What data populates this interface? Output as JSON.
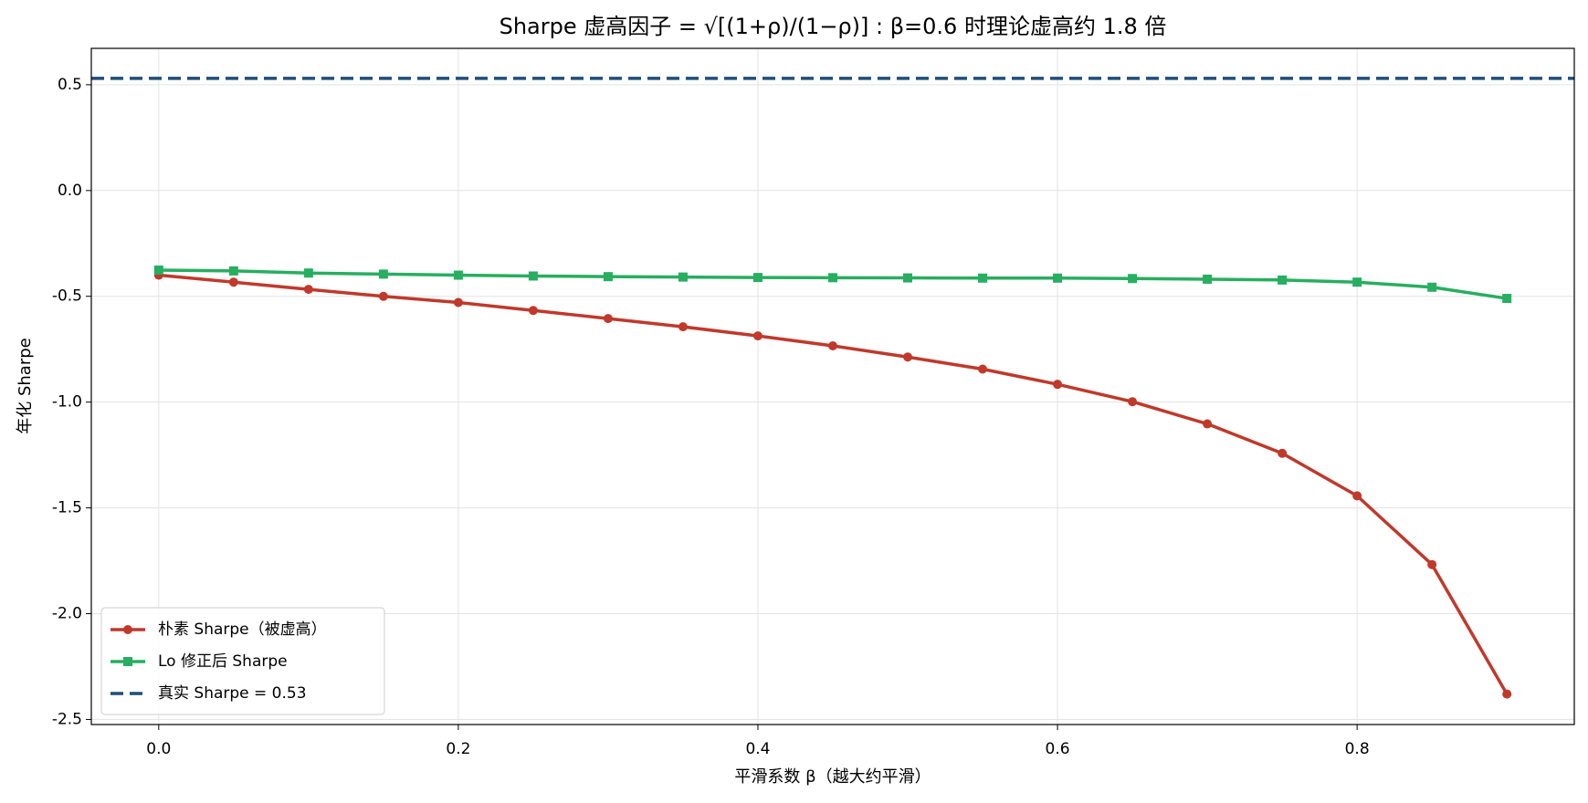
{
  "chart_data": {
    "type": "line",
    "title": "Sharpe 虚高因子 = √[(1+ρ)/(1−ρ)] : β=0.6 时理论虚高约 1.8 倍",
    "x_label": "平滑系数 β（越大约平滑）",
    "y_label": "年化 Sharpe",
    "x": [
      0,
      0.05,
      0.1,
      0.15,
      0.2,
      0.25,
      0.3,
      0.35,
      0.4,
      0.45,
      0.5,
      0.55,
      0.6,
      0.65,
      0.7,
      0.75,
      0.8,
      0.85,
      0.9
    ],
    "series": [
      {
        "name": "朴素 Sharpe（被虚高）",
        "color": "#c0392b",
        "marker": "circle",
        "values": [
          -0.4,
          -0.433,
          -0.467,
          -0.5,
          -0.529,
          -0.567,
          -0.605,
          -0.644,
          -0.687,
          -0.734,
          -0.787,
          -0.844,
          -0.916,
          -0.998,
          -1.103,
          -1.242,
          -1.443,
          -1.768,
          -2.38
        ]
      },
      {
        "name": "Lo 修正后 Sharpe",
        "color": "#27ae60",
        "marker": "square",
        "values": [
          -0.376,
          -0.38,
          -0.39,
          -0.395,
          -0.4,
          -0.404,
          -0.407,
          -0.409,
          -0.411,
          -0.412,
          -0.413,
          -0.414,
          -0.414,
          -0.416,
          -0.419,
          -0.423,
          -0.433,
          -0.457,
          -0.51
        ]
      }
    ],
    "reference_line": {
      "name": "真实 Sharpe = 0.53",
      "value": 0.53,
      "color": "#1f4e79"
    },
    "xlim": [
      -0.045,
      0.945
    ],
    "ylim": [
      -2.524,
      0.672
    ],
    "xticks": [
      {
        "value": 0,
        "label": "0.0"
      },
      0.2,
      0.4,
      0.6,
      0.8
    ],
    "yticks": [
      0.5,
      {
        "value": 0,
        "label": "0.0"
      },
      -0.5,
      {
        "value": -1,
        "label": "-1.0"
      },
      -1.5,
      {
        "value": -2,
        "label": "-2.0"
      },
      -2.5
    ],
    "grid": true,
    "legend_position": "lower left"
  }
}
